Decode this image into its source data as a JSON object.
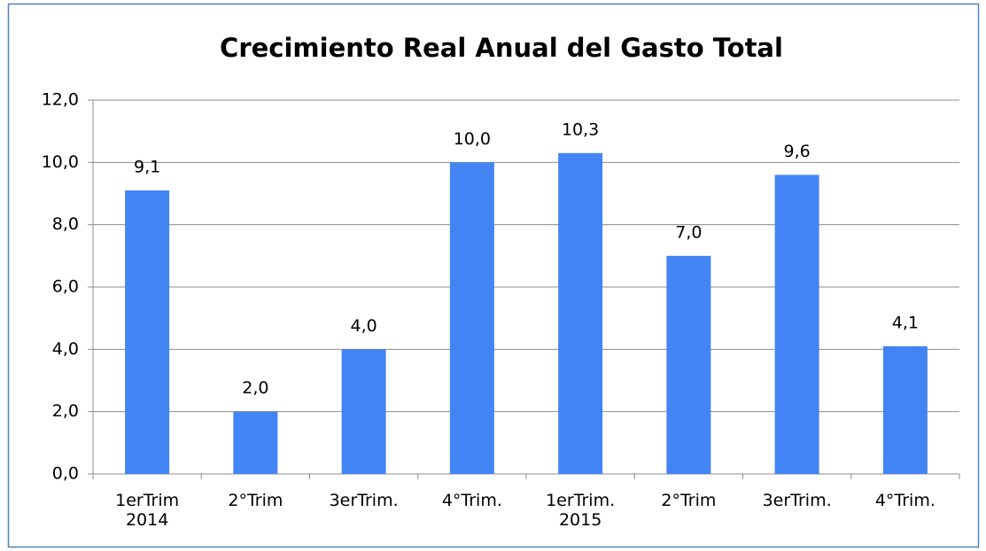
{
  "chart_data": {
    "type": "bar",
    "title": "Crecimiento Real Anual del Gasto Total",
    "categories": [
      "1erTrim\n2014",
      "2°Trim",
      "3erTrim.",
      "4°Trim.",
      "1erTrim.\n2015",
      "2°Trim",
      "3erTrim.",
      "4°Trim."
    ],
    "values": [
      9.1,
      2.0,
      4.0,
      10.0,
      10.3,
      7.0,
      9.6,
      4.1
    ],
    "value_labels": [
      "9,1",
      "2,0",
      "4,0",
      "10,0",
      "10,3",
      "7,0",
      "9,6",
      "4,1"
    ],
    "color": "#4384f5",
    "ylim": [
      0,
      12
    ],
    "yticks": [
      {
        "value": 0,
        "label": "0,0"
      },
      {
        "value": 2,
        "label": "2,0"
      },
      {
        "value": 4,
        "label": "4,0"
      },
      {
        "value": 6,
        "label": "6,0"
      },
      {
        "value": 8,
        "label": "8,0"
      },
      {
        "value": 10,
        "label": "10,0"
      },
      {
        "value": 12,
        "label": "12,0"
      }
    ],
    "grid": true
  }
}
